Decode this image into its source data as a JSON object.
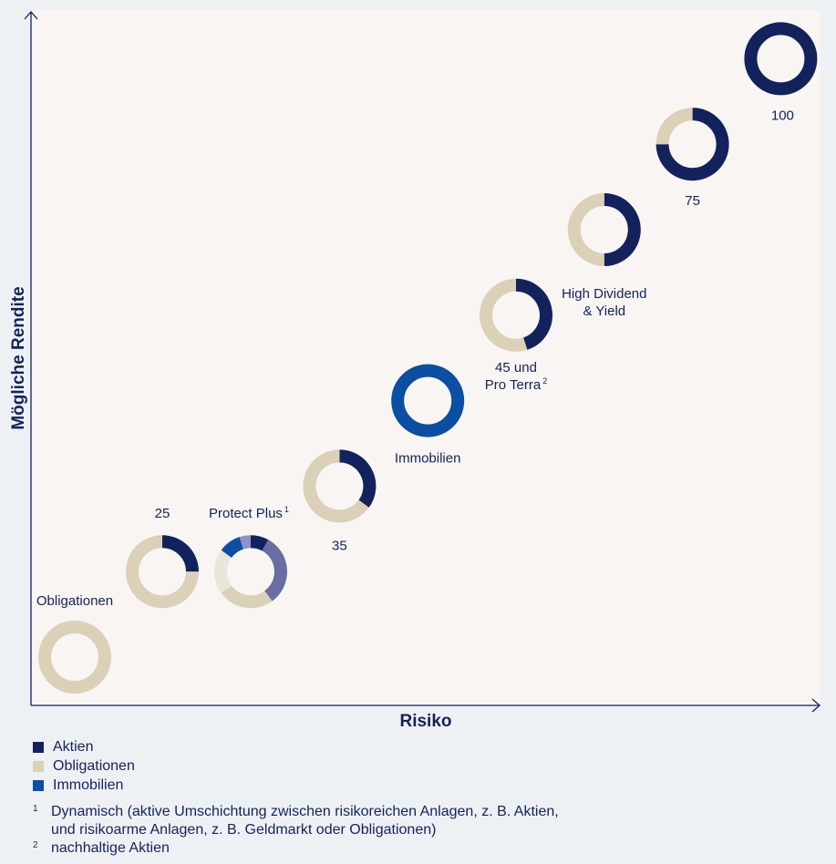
{
  "colors": {
    "aktien": "#13225c",
    "obligationen": "#dbd1b8",
    "immobilien": "#0b4ea2",
    "dynamisch": "#6a6ca3",
    "plot_bg": "#f8f5f2",
    "page_bg": "#eef1f4",
    "axis": "#13225c"
  },
  "chart_data": {
    "type": "donut-scatter",
    "xlabel": "Risiko",
    "ylabel": "Mögliche Rendite",
    "series_names": [
      "Aktien",
      "Obligationen",
      "Immobilien"
    ],
    "points": [
      {
        "label": "Obligationen",
        "sup": "",
        "x": 1,
        "y": 1,
        "segments": [
          {
            "name": "Obligationen",
            "value": 100
          }
        ]
      },
      {
        "label": "25",
        "sup": "",
        "x": 2,
        "y": 2,
        "segments": [
          {
            "name": "Aktien",
            "value": 25
          },
          {
            "name": "Obligationen",
            "value": 75
          }
        ]
      },
      {
        "label": "Protect Plus",
        "sup": "1",
        "x": 3,
        "y": 2,
        "segments": [
          {
            "name": "Aktien",
            "value": 8
          },
          {
            "name": "Dynamisch",
            "value": 32
          },
          {
            "name": "Obligationen",
            "value": 25
          },
          {
            "name": "Obligationen hell",
            "value": 20
          },
          {
            "name": "Immobilien",
            "value": 10
          },
          {
            "name": "Dynamisch hell",
            "value": 5
          }
        ]
      },
      {
        "label": "35",
        "sup": "",
        "x": 4,
        "y": 3,
        "segments": [
          {
            "name": "Aktien",
            "value": 35
          },
          {
            "name": "Obligationen",
            "value": 65
          }
        ]
      },
      {
        "label": "Immobilien",
        "sup": "",
        "x": 5,
        "y": 4,
        "segments": [
          {
            "name": "Immobilien",
            "value": 100
          }
        ]
      },
      {
        "label": "45 und\nPro Terra",
        "sup": "2",
        "x": 6,
        "y": 5,
        "segments": [
          {
            "name": "Aktien",
            "value": 45
          },
          {
            "name": "Obligationen",
            "value": 55
          }
        ]
      },
      {
        "label": "High Dividend\n& Yield",
        "sup": "",
        "x": 7,
        "y": 6,
        "segments": [
          {
            "name": "Aktien",
            "value": 50
          },
          {
            "name": "Obligationen",
            "value": 50
          }
        ]
      },
      {
        "label": "75",
        "sup": "",
        "x": 8,
        "y": 7,
        "segments": [
          {
            "name": "Aktien",
            "value": 75
          },
          {
            "name": "Obligationen",
            "value": 25
          }
        ]
      },
      {
        "label": "100",
        "sup": "",
        "x": 9,
        "y": 8,
        "segments": [
          {
            "name": "Aktien",
            "value": 100
          }
        ]
      }
    ]
  },
  "legend": [
    {
      "label": "Aktien",
      "color": "#13225c"
    },
    {
      "label": "Obligationen",
      "color": "#dbd1b8"
    },
    {
      "label": "Immobilien",
      "color": "#0b4ea2"
    }
  ],
  "footnotes": [
    {
      "mark": "1",
      "text": "Dynamisch (aktive Umschichtung zwischen risikoreichen Anlagen, z. B. Aktien,\nund risikoarme Anlagen, z. B. Geldmarkt oder Obligationen)"
    },
    {
      "mark": "2",
      "text": "nachhaltige Aktien"
    }
  ]
}
